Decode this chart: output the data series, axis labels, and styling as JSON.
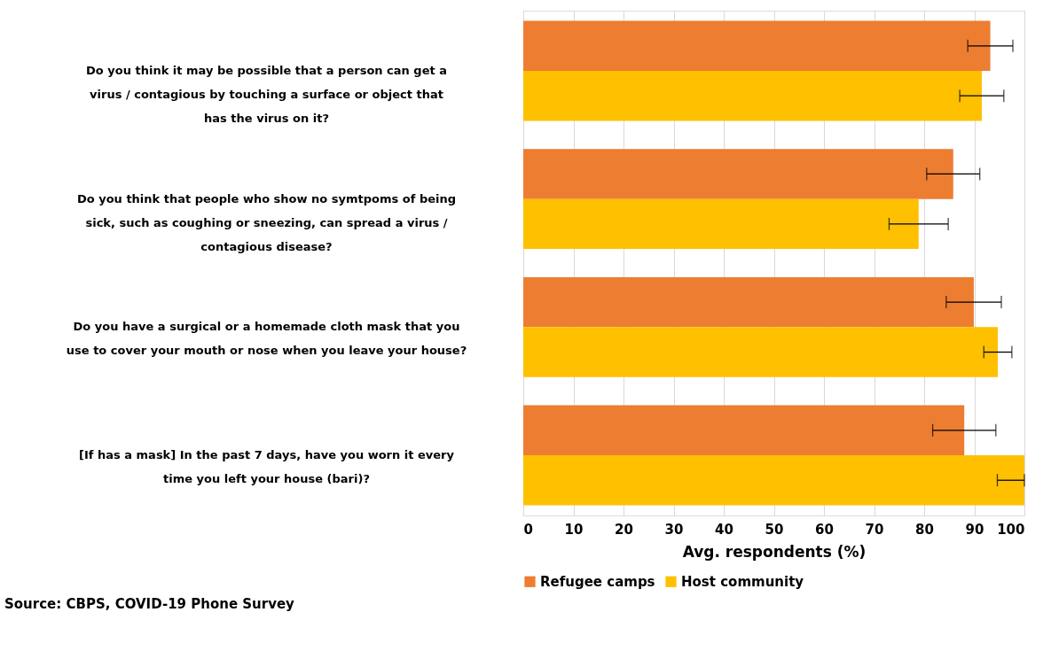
{
  "chart_data": {
    "type": "bar",
    "orientation": "horizontal",
    "xlabel": "Avg. respondents (%)",
    "categories": [
      "Do you think it may be possible that a person can get a virus / contagious by touching a surface or object that has the virus on it?",
      "Do you think that people who show no symtpoms of being sick, such as coughing or sneezing, can spread a virus / contagious disease?",
      "Do you have a surgical or a homemade cloth mask that you use to cover your mouth or nose when you leave your house?",
      "[If has a mask] In the past 7 days, have you worn it every time you left your house (bari)?"
    ],
    "series": [
      {
        "name": "Refugee camps",
        "color": "#ed7d31",
        "values": [
          93.2,
          85.8,
          89.9,
          88.0
        ],
        "errors": [
          4.5,
          5.3,
          5.5,
          6.3
        ]
      },
      {
        "name": "Host community",
        "color": "#ffc000",
        "values": [
          91.5,
          78.9,
          94.7,
          100
        ],
        "errors": [
          4.4,
          5.9,
          2.8,
          [
            94.6,
            100
          ]
        ]
      }
    ],
    "xlim": [
      0,
      100
    ],
    "xticks": [
      0,
      10,
      20,
      30,
      40,
      50,
      60,
      70,
      80,
      90,
      100
    ],
    "grid": "x",
    "legend": "bottom",
    "annotations": [
      "Source: CBPS, COVID-19 Phone Survey"
    ]
  }
}
